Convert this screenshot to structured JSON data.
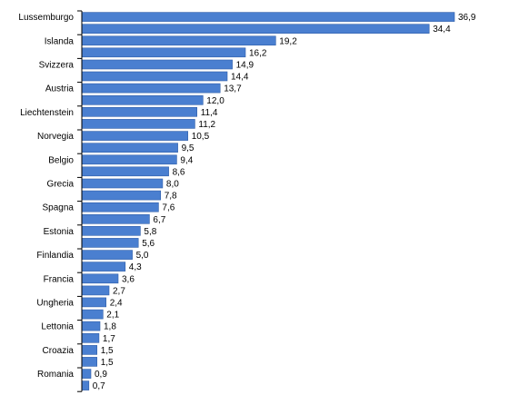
{
  "chart_data": {
    "type": "bar",
    "orientation": "horizontal",
    "title": "",
    "xlabel": "",
    "ylabel": "",
    "grid": false,
    "legend": "none",
    "xlim": [
      0,
      36.9
    ],
    "bar_color": "#4a7fd0",
    "bar_edge_color": "#2f5ea8",
    "axis_color": "#000000",
    "categories": [
      "Lussemburgo",
      "",
      "Islanda",
      "",
      "Svizzera",
      "",
      "Austria",
      "",
      "Liechtenstein",
      "",
      "Norvegia",
      "",
      "Belgio",
      "",
      "Grecia",
      "",
      "Spagna",
      "",
      "Estonia",
      "",
      "Finlandia",
      "",
      "Francia",
      "",
      "Ungheria",
      "",
      "Lettonia",
      "",
      "Croazia",
      "",
      "Romania",
      ""
    ],
    "values": [
      36.9,
      34.4,
      19.2,
      16.2,
      14.9,
      14.4,
      13.7,
      12.0,
      11.4,
      11.2,
      10.5,
      9.5,
      9.4,
      8.6,
      8.0,
      7.8,
      7.6,
      6.7,
      5.8,
      5.6,
      5.0,
      4.3,
      3.6,
      2.7,
      2.4,
      2.1,
      1.8,
      1.7,
      1.5,
      1.5,
      0.9,
      0.7
    ],
    "value_labels": [
      "36,9",
      "34,4",
      "19,2",
      "16,2",
      "14,9",
      "14,4",
      "13,7",
      "12,0",
      "11,4",
      "11,2",
      "10,5",
      "9,5",
      "9,4",
      "8,6",
      "8,0",
      "7,8",
      "7,6",
      "6,7",
      "5,8",
      "5,6",
      "5,0",
      "4,3",
      "3,6",
      "2,7",
      "2,4",
      "2,1",
      "1,8",
      "1,7",
      "1,5",
      "1,5",
      "0,9",
      "0,7"
    ]
  }
}
